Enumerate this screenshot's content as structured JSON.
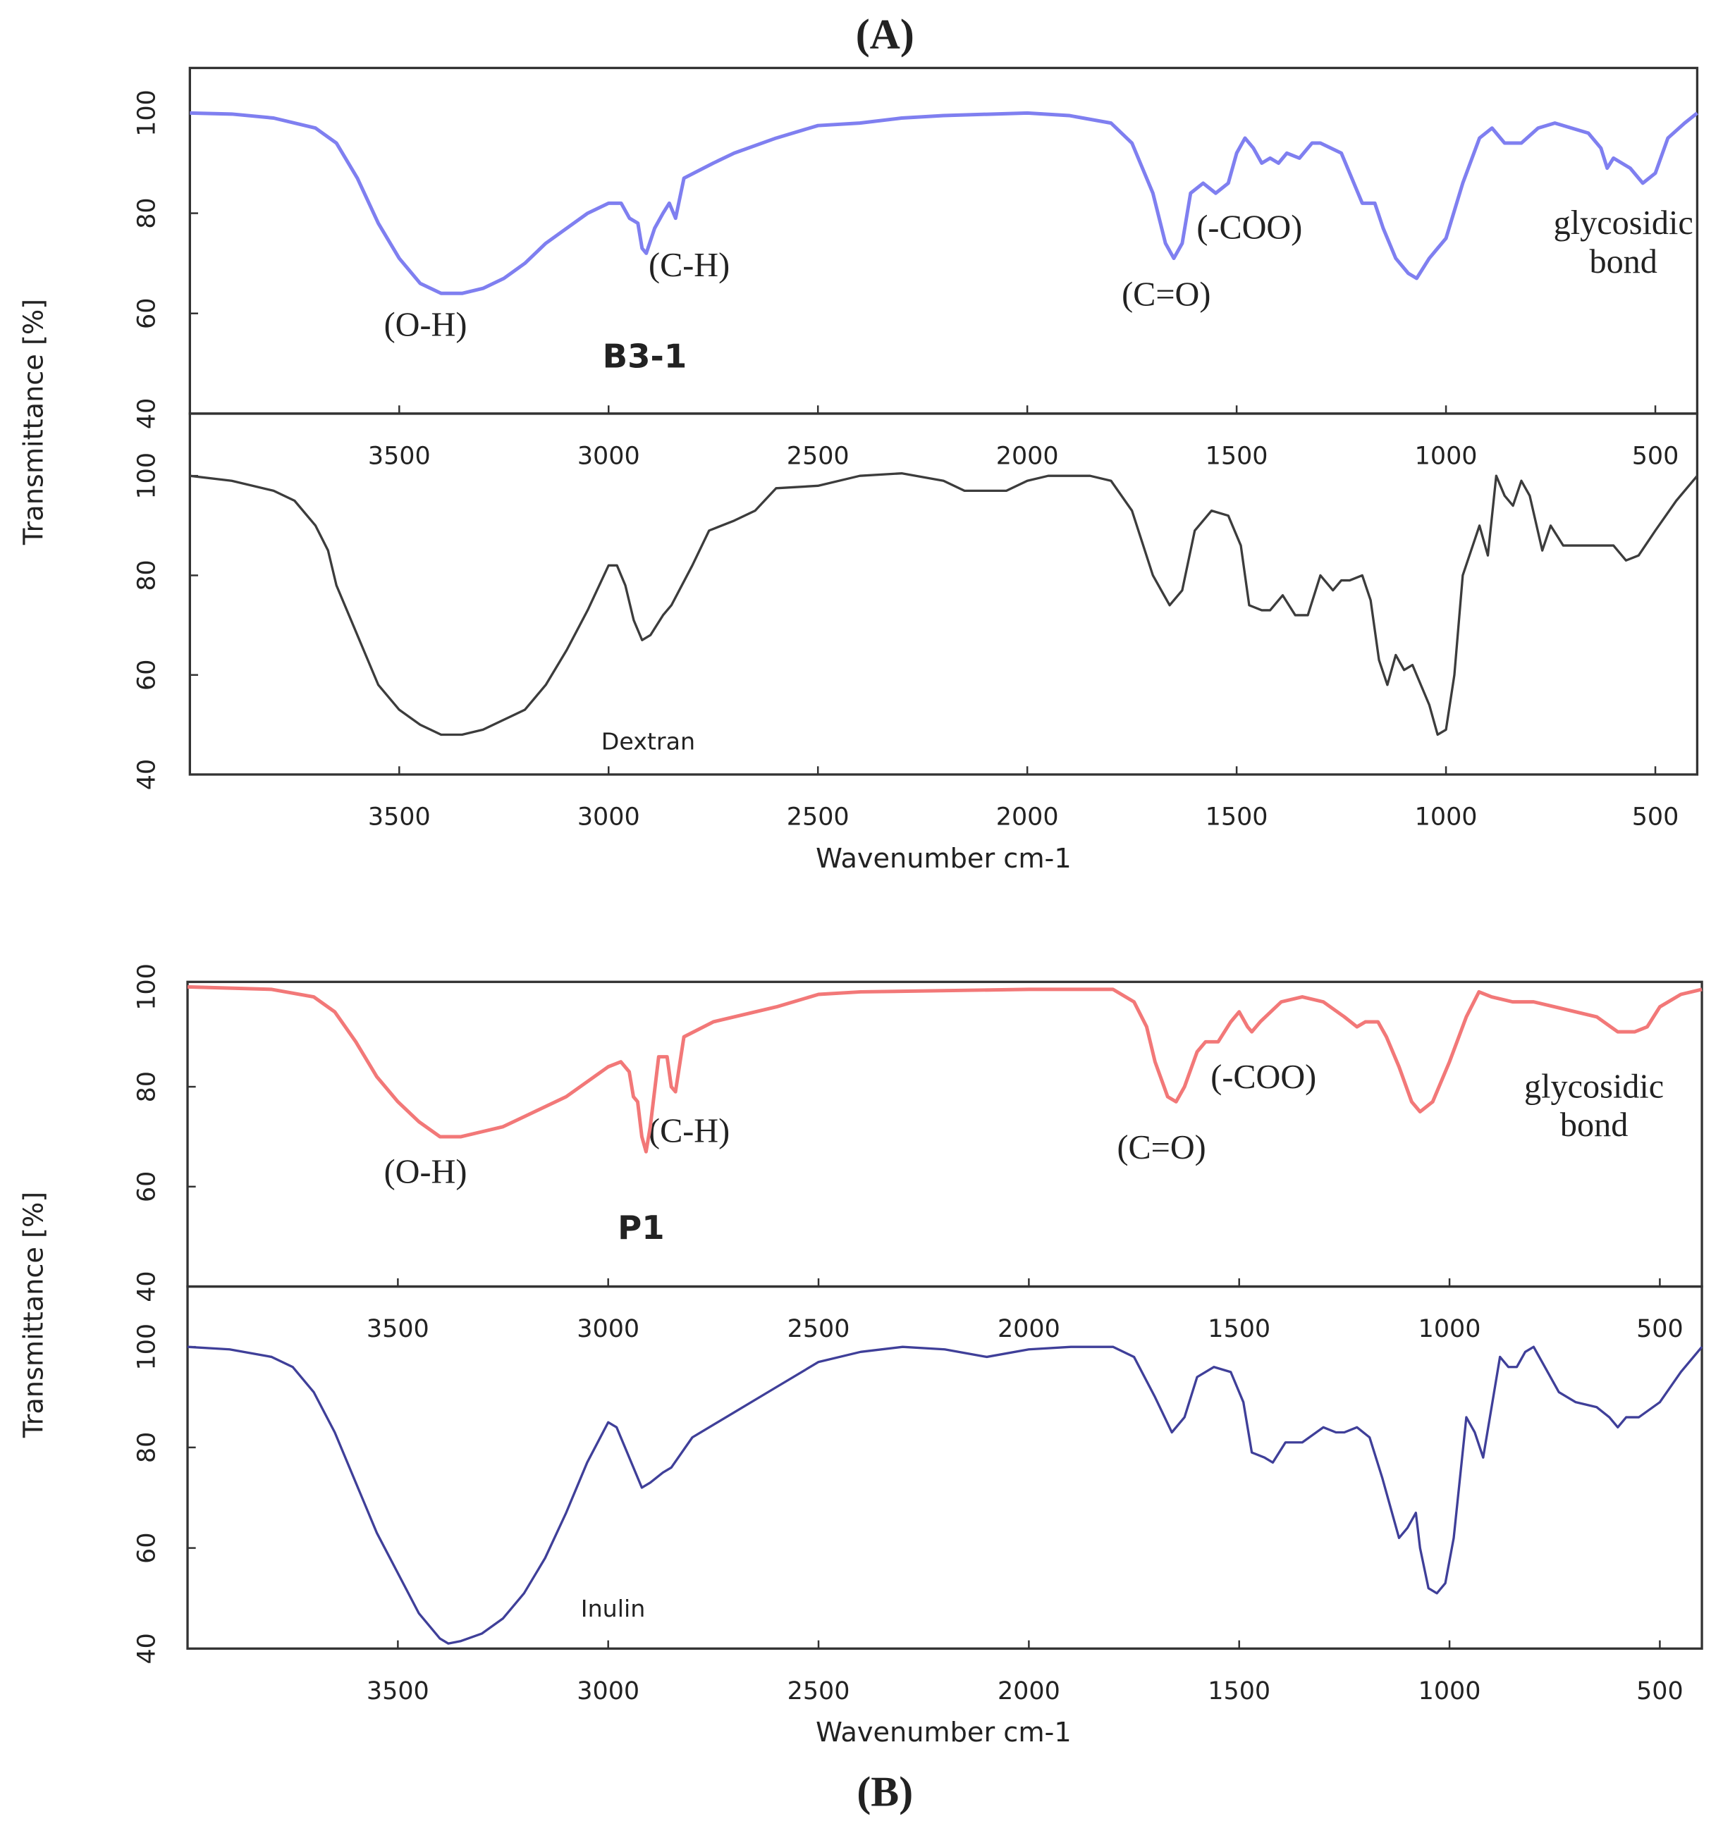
{
  "panel_labels": [
    "(A)",
    "(B)"
  ],
  "chart_data": [
    {
      "type": "line",
      "ylabel": "Transmittance [%]",
      "x": [
        4000,
        3900,
        3800,
        3700,
        3650,
        3600,
        3550,
        3500,
        3450,
        3400,
        3350,
        3300,
        3250,
        3200,
        3150,
        3100,
        3050,
        3000,
        2970,
        2950,
        2930,
        2920,
        2910,
        2890,
        2870,
        2855,
        2840,
        2820,
        2750,
        2700,
        2600,
        2500,
        2400,
        2300,
        2200,
        2000,
        1900,
        1800,
        1750,
        1700,
        1670,
        1650,
        1630,
        1610,
        1580,
        1550,
        1520,
        1500,
        1480,
        1460,
        1440,
        1420,
        1400,
        1380,
        1350,
        1320,
        1300,
        1250,
        1220,
        1200,
        1170,
        1150,
        1120,
        1090,
        1070,
        1040,
        1000,
        960,
        920,
        890,
        860,
        820,
        780,
        740,
        700,
        660,
        630,
        615,
        600,
        560,
        530,
        500,
        470,
        430,
        400
      ],
      "series": [
        {
          "name": "B3-1",
          "color": "#7f7ff0",
          "values": [
            100,
            99.8,
            99,
            97,
            94,
            87,
            78,
            71,
            66,
            64,
            64,
            65,
            67,
            70,
            74,
            77,
            80,
            82,
            82,
            79,
            78,
            73,
            72,
            77,
            80,
            82,
            79,
            87,
            90,
            92,
            95,
            97.5,
            98,
            99,
            99.5,
            100,
            99.5,
            98,
            94,
            84,
            74,
            71,
            74,
            84,
            86,
            84,
            86,
            92,
            95,
            93,
            90,
            91,
            90,
            92,
            91,
            94,
            94,
            92,
            86,
            82,
            82,
            77,
            71,
            68,
            67,
            71,
            75,
            86,
            95,
            97,
            94,
            94,
            97,
            98,
            97,
            96,
            93,
            89,
            91,
            89,
            86,
            88,
            95,
            98,
            100
          ]
        }
      ],
      "xlim": [
        4000,
        400
      ],
      "xticks": [
        3500,
        3000,
        2500,
        2000,
        1500,
        1000,
        500
      ],
      "ylim": [
        40,
        109
      ],
      "yticks": [
        40,
        60,
        80,
        100
      ],
      "annotations": [
        "(O-H)",
        "(C-H)",
        "(C=O)",
        "(-COO)",
        "glycosidic",
        "bond"
      ]
    },
    {
      "type": "line",
      "xlabel": "Wavenumber cm-1",
      "x": [
        4000,
        3900,
        3800,
        3750,
        3700,
        3670,
        3650,
        3600,
        3550,
        3500,
        3450,
        3400,
        3350,
        3300,
        3250,
        3200,
        3150,
        3100,
        3050,
        3000,
        2980,
        2960,
        2940,
        2920,
        2900,
        2870,
        2850,
        2800,
        2760,
        2700,
        2650,
        2600,
        2500,
        2400,
        2300,
        2200,
        2150,
        2050,
        2000,
        1950,
        1850,
        1800,
        1750,
        1700,
        1660,
        1630,
        1600,
        1560,
        1520,
        1490,
        1470,
        1440,
        1420,
        1390,
        1360,
        1330,
        1300,
        1270,
        1250,
        1230,
        1200,
        1180,
        1160,
        1140,
        1120,
        1100,
        1080,
        1060,
        1040,
        1020,
        1000,
        980,
        960,
        940,
        920,
        900,
        880,
        860,
        840,
        820,
        800,
        770,
        750,
        720,
        680,
        600,
        570,
        540,
        500,
        450,
        400
      ],
      "series": [
        {
          "name": "Dextran",
          "color": "#3c3c3c",
          "values": [
            100,
            99,
            97,
            95,
            90,
            85,
            78,
            68,
            58,
            53,
            50,
            48,
            48,
            49,
            51,
            53,
            58,
            65,
            73,
            82,
            82,
            78,
            71,
            67,
            68,
            72,
            74,
            82,
            89,
            91,
            93,
            97.5,
            98,
            100,
            100.5,
            99,
            97,
            97,
            99,
            100,
            100,
            99,
            93,
            80,
            74,
            77,
            89,
            93,
            92,
            86,
            74,
            73,
            73,
            76,
            72,
            72,
            80,
            77,
            79,
            79,
            80,
            75,
            63,
            58,
            64,
            61,
            62,
            58,
            54,
            48,
            49,
            60,
            80,
            85,
            90,
            84,
            100,
            96,
            94,
            99,
            96,
            85,
            90,
            86,
            86,
            86,
            83,
            84,
            89,
            95,
            100
          ]
        }
      ],
      "xlim": [
        4000,
        400
      ],
      "xticks": [
        3500,
        3000,
        2500,
        2000,
        1500,
        1000,
        500
      ],
      "ylim": [
        40,
        112.5
      ],
      "yticks": [
        40,
        60,
        80,
        100
      ]
    },
    {
      "type": "line",
      "ylabel": "Transmittance [%]",
      "x": [
        4000,
        3800,
        3700,
        3650,
        3600,
        3550,
        3500,
        3450,
        3400,
        3350,
        3300,
        3250,
        3200,
        3100,
        3050,
        3000,
        2970,
        2950,
        2940,
        2930,
        2920,
        2910,
        2900,
        2880,
        2860,
        2850,
        2840,
        2820,
        2750,
        2600,
        2500,
        2400,
        2000,
        1800,
        1750,
        1720,
        1700,
        1670,
        1650,
        1630,
        1600,
        1580,
        1550,
        1520,
        1500,
        1480,
        1470,
        1450,
        1400,
        1350,
        1300,
        1250,
        1220,
        1200,
        1170,
        1150,
        1120,
        1090,
        1070,
        1040,
        1000,
        960,
        930,
        900,
        850,
        800,
        750,
        700,
        650,
        600,
        560,
        530,
        500,
        450,
        400
      ],
      "series": [
        {
          "name": "P1",
          "color": "#f27878",
          "values": [
            100,
            99.5,
            98,
            95,
            89,
            82,
            77,
            73,
            70,
            70,
            71,
            72,
            74,
            78,
            81,
            84,
            85,
            83,
            78,
            77,
            70,
            67,
            72,
            86,
            86,
            80,
            79,
            90,
            93,
            96,
            98.5,
            99,
            99.5,
            99.5,
            97,
            92,
            85,
            78,
            77,
            80,
            87,
            89,
            89,
            93,
            95,
            92,
            91,
            93,
            97,
            98,
            97,
            94,
            92,
            93,
            93,
            90,
            84,
            77,
            75,
            77,
            85,
            94,
            99,
            98,
            97,
            97,
            96,
            95,
            94,
            91,
            91,
            92,
            96,
            98.5,
            99.5
          ]
        }
      ],
      "xlim": [
        4000,
        400
      ],
      "xticks": [
        3500,
        3000,
        2500,
        2000,
        1500,
        1000,
        500
      ],
      "ylim": [
        40,
        101
      ],
      "yticks": [
        40,
        60,
        80,
        100
      ],
      "annotations": [
        "(O-H)",
        "(C-H)",
        "(C=O)",
        "(-COO)",
        "glycosidic",
        "bond"
      ]
    },
    {
      "type": "line",
      "xlabel": "Wavenumber cm-1",
      "x": [
        4000,
        3900,
        3800,
        3750,
        3700,
        3650,
        3600,
        3550,
        3500,
        3450,
        3400,
        3380,
        3350,
        3300,
        3250,
        3200,
        3150,
        3100,
        3050,
        3000,
        2980,
        2950,
        2920,
        2900,
        2870,
        2850,
        2800,
        2700,
        2600,
        2500,
        2400,
        2300,
        2200,
        2100,
        2000,
        1900,
        1800,
        1750,
        1700,
        1660,
        1630,
        1600,
        1560,
        1520,
        1490,
        1470,
        1440,
        1420,
        1390,
        1350,
        1300,
        1270,
        1250,
        1220,
        1190,
        1160,
        1140,
        1120,
        1100,
        1080,
        1070,
        1050,
        1030,
        1010,
        990,
        970,
        960,
        940,
        920,
        900,
        880,
        860,
        840,
        820,
        800,
        780,
        740,
        700,
        650,
        620,
        600,
        580,
        550,
        500,
        450,
        400
      ],
      "series": [
        {
          "name": "Inulin",
          "color": "#3f3f99",
          "values": [
            100,
            99.5,
            98,
            96,
            91,
            83,
            73,
            63,
            55,
            47,
            42,
            41,
            41.5,
            43,
            46,
            51,
            58,
            67,
            77,
            85,
            84,
            78,
            72,
            73,
            75,
            76,
            82,
            87,
            92,
            97,
            99,
            100,
            99.5,
            98,
            99.5,
            100,
            100,
            98,
            90,
            83,
            86,
            94,
            96,
            95,
            89,
            79,
            78,
            77,
            81,
            81,
            84,
            83,
            83,
            84,
            82,
            74,
            68,
            62,
            64,
            67,
            60,
            52,
            51,
            53,
            62,
            78,
            86,
            83,
            78,
            88,
            98,
            96,
            96,
            99,
            100,
            97,
            91,
            89,
            88,
            86,
            84,
            86,
            86,
            89,
            95,
            100
          ]
        }
      ],
      "xlim": [
        4000,
        400
      ],
      "xticks": [
        3500,
        3000,
        2500,
        2000,
        1500,
        1000,
        500
      ],
      "ylim": [
        40,
        112
      ],
      "yticks": [
        40,
        60,
        80,
        100
      ]
    }
  ]
}
